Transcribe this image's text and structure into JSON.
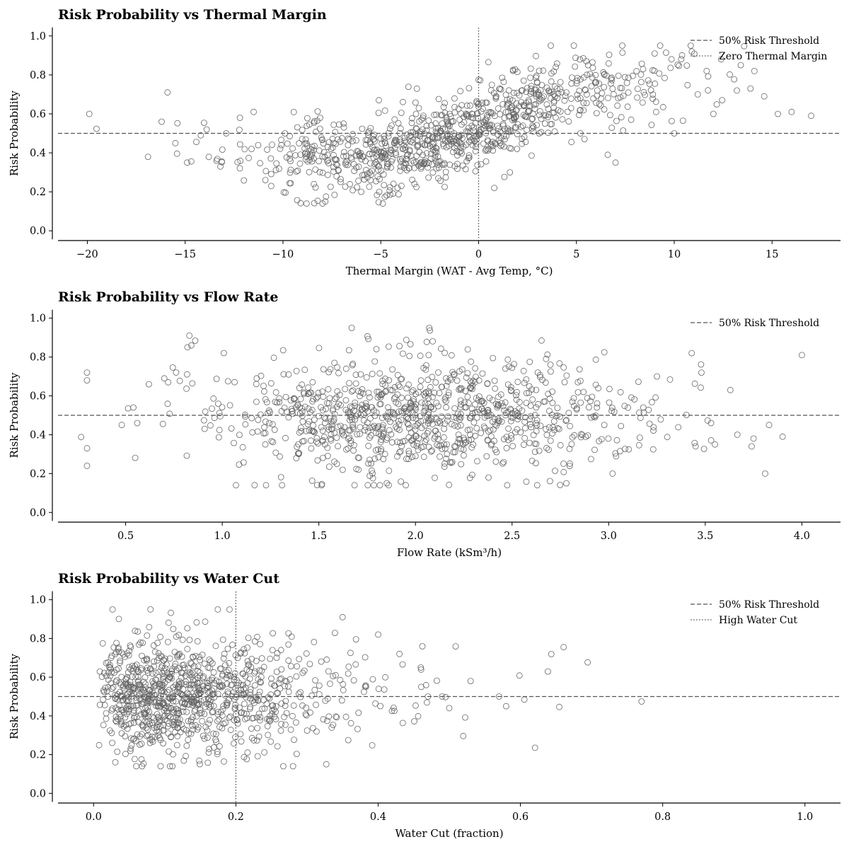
{
  "chart_data": [
    {
      "type": "scatter",
      "title": "Risk Probability vs Thermal Margin",
      "xlabel": "Thermal Margin (WAT - Avg Temp, °C)",
      "ylabel": "Risk Probability",
      "xlim": [
        -21.5,
        18.5
      ],
      "ylim": [
        -0.05,
        1.05
      ],
      "xticks": [
        -20,
        -15,
        -10,
        -5,
        0,
        5,
        10,
        15
      ],
      "xtick_labels": [
        "−20",
        "−15",
        "−10",
        "−5",
        "0",
        "5",
        "10",
        "15"
      ],
      "yticks": [
        0.0,
        0.2,
        0.4,
        0.6,
        0.8,
        1.0
      ],
      "ytick_labels": [
        "0.0",
        "0.2",
        "0.4",
        "0.6",
        "0.8",
        "1.0"
      ],
      "grid": false,
      "legend_position": "top-right",
      "reference_lines": [
        {
          "orientation": "horizontal",
          "value": 0.5,
          "style": "dashed",
          "label": "50% Risk Threshold"
        },
        {
          "orientation": "vertical",
          "value": 0,
          "style": "dotted",
          "label": "Zero Thermal Margin"
        }
      ],
      "series": [
        {
          "points_approx": 1000,
          "trend": "logistic",
          "trend_params": {
            "low": 0.38,
            "high": 0.77,
            "center": 1.0,
            "scale": 2.2
          },
          "x_distribution": {
            "mean": -1.5,
            "sd": 5.2
          },
          "noise_sd": 0.1,
          "highlight_points": [
            [
              -19.9,
              0.6
            ],
            [
              -16.9,
              0.38
            ],
            [
              -16.2,
              0.56
            ],
            [
              -15.9,
              0.71
            ],
            [
              -15.5,
              0.45
            ],
            [
              -14.9,
              0.35
            ],
            [
              -14.2,
              0.49
            ],
            [
              -13.9,
              0.52
            ],
            [
              -13.4,
              0.36
            ],
            [
              -13.2,
              0.33
            ],
            [
              -12.9,
              0.5
            ],
            [
              -12.2,
              0.58
            ],
            [
              -11.5,
              0.61
            ],
            [
              -10.9,
              0.26
            ],
            [
              -10.6,
              0.23
            ],
            [
              -9.9,
              0.5
            ],
            [
              -8.1,
              0.58
            ],
            [
              -6.9,
              0.55
            ],
            [
              -6.0,
              0.2
            ],
            [
              -5.1,
              0.67
            ],
            [
              -4.9,
              0.14
            ],
            [
              -3.2,
              0.6
            ],
            [
              -1.4,
              0.56
            ],
            [
              0.8,
              0.22
            ],
            [
              1.6,
              0.3
            ],
            [
              3.1,
              0.5
            ],
            [
              5.2,
              0.5
            ],
            [
              6.6,
              0.39
            ],
            [
              7.0,
              0.35
            ],
            [
              7.8,
              0.57
            ],
            [
              9.0,
              0.91
            ],
            [
              10.0,
              0.5
            ],
            [
              10.4,
              0.9
            ],
            [
              10.9,
              0.92
            ],
            [
              11.2,
              0.7
            ],
            [
              12.0,
              0.6
            ],
            [
              12.4,
              0.88
            ],
            [
              13.2,
              0.72
            ],
            [
              13.4,
              0.85
            ],
            [
              13.9,
              0.73
            ],
            [
              14.1,
              0.82
            ],
            [
              14.6,
              0.69
            ],
            [
              15.3,
              0.6
            ],
            [
              16.0,
              0.61
            ],
            [
              17.0,
              0.59
            ]
          ]
        }
      ]
    },
    {
      "type": "scatter",
      "title": "Risk Probability vs Flow Rate",
      "xlabel": "Flow Rate (kSm³/h)",
      "ylabel": "Risk Probability",
      "xlim": [
        0.15,
        4.2
      ],
      "ylim": [
        -0.05,
        1.05
      ],
      "xticks": [
        0.5,
        1.0,
        1.5,
        2.0,
        2.5,
        3.0,
        3.5,
        4.0
      ],
      "xtick_labels": [
        "0.5",
        "1.0",
        "1.5",
        "2.0",
        "2.5",
        "3.0",
        "3.5",
        "4.0"
      ],
      "yticks": [
        0.0,
        0.2,
        0.4,
        0.6,
        0.8,
        1.0
      ],
      "ytick_labels": [
        "0.0",
        "0.2",
        "0.4",
        "0.6",
        "0.8",
        "1.0"
      ],
      "grid": false,
      "legend_position": "top-right",
      "reference_lines": [
        {
          "orientation": "horizontal",
          "value": 0.5,
          "style": "dashed",
          "label": "50% Risk Threshold"
        }
      ],
      "series": [
        {
          "points_approx": 1000,
          "trend": "flat",
          "trend_params": {
            "level": 0.5
          },
          "x_distribution": {
            "mean": 2.05,
            "sd": 0.55
          },
          "noise_sd": 0.15,
          "highlight_points": [
            [
              0.3,
              0.72
            ],
            [
              0.3,
              0.68
            ],
            [
              0.3,
              0.33
            ],
            [
              0.3,
              0.24
            ],
            [
              0.48,
              0.45
            ],
            [
              0.54,
              0.54
            ],
            [
              0.56,
              0.46
            ],
            [
              0.62,
              0.66
            ],
            [
              0.7,
              0.69
            ],
            [
              0.72,
              0.67
            ],
            [
              0.82,
              0.85
            ],
            [
              0.83,
              0.91
            ],
            [
              0.84,
              0.86
            ],
            [
              1.67,
              0.95
            ],
            [
              2.63,
              0.14
            ],
            [
              3.02,
              0.2
            ],
            [
              3.25,
              0.7
            ],
            [
              3.43,
              0.82
            ],
            [
              3.45,
              0.34
            ],
            [
              3.48,
              0.72
            ],
            [
              3.53,
              0.46
            ],
            [
              3.55,
              0.35
            ],
            [
              3.63,
              0.63
            ],
            [
              3.74,
              0.34
            ],
            [
              3.75,
              0.38
            ],
            [
              3.81,
              0.2
            ],
            [
              3.83,
              0.45
            ],
            [
              3.9,
              0.39
            ],
            [
              4.0,
              0.81
            ]
          ]
        }
      ]
    },
    {
      "type": "scatter",
      "title": "Risk Probability vs Water Cut",
      "xlabel": "Water Cut (fraction)",
      "ylabel": "Risk Probability",
      "xlim": [
        -0.05,
        1.05
      ],
      "ylim": [
        -0.05,
        1.05
      ],
      "xticks": [
        0.0,
        0.2,
        0.4,
        0.6,
        0.8,
        1.0
      ],
      "xtick_labels": [
        "0.0",
        "0.2",
        "0.4",
        "0.6",
        "0.8",
        "1.0"
      ],
      "yticks": [
        0.0,
        0.2,
        0.4,
        0.6,
        0.8,
        1.0
      ],
      "ytick_labels": [
        "0.0",
        "0.2",
        "0.4",
        "0.6",
        "0.8",
        "1.0"
      ],
      "grid": false,
      "legend_position": "top-right",
      "reference_lines": [
        {
          "orientation": "horizontal",
          "value": 0.5,
          "style": "dashed",
          "label": "50% Risk Threshold"
        },
        {
          "orientation": "vertical",
          "value": 0.2,
          "style": "dotted",
          "label": "High Water Cut"
        }
      ],
      "series": [
        {
          "points_approx": 1000,
          "trend": "flat",
          "trend_params": {
            "level": 0.5
          },
          "x_distribution": {
            "gamma_shape": 2.2,
            "gamma_scale": 0.07
          },
          "noise_sd": 0.15,
          "highlight_points": [
            [
              0.06,
              0.14
            ],
            [
              0.08,
              0.95
            ],
            [
              0.35,
              0.91
            ],
            [
              0.4,
              0.82
            ],
            [
              0.43,
              0.72
            ],
            [
              0.46,
              0.65
            ],
            [
              0.47,
              0.5
            ],
            [
              0.49,
              0.5
            ],
            [
              0.5,
              0.44
            ],
            [
              0.53,
              0.58
            ],
            [
              0.57,
              0.5
            ],
            [
              0.58,
              0.45
            ]
          ]
        }
      ]
    }
  ]
}
